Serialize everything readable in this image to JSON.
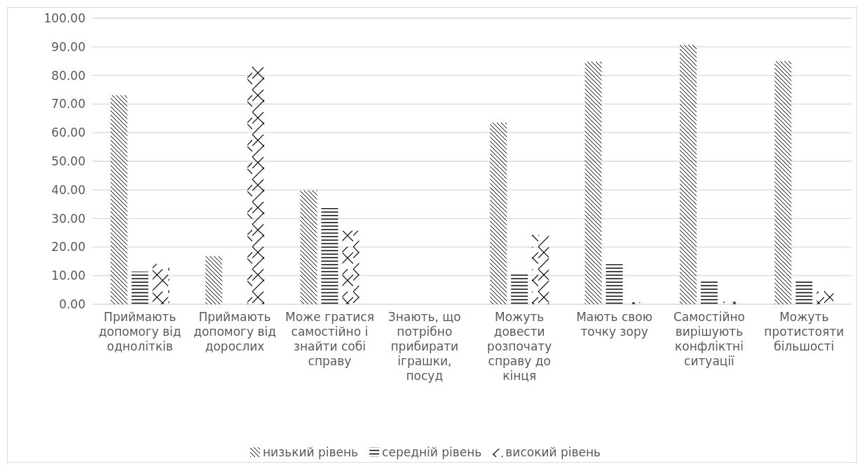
{
  "chart_data": {
    "type": "bar",
    "categories": [
      "Приймають допомогу від однолітків",
      "Приймають допомогу від дорослих",
      "Може гратися самостійно і знайти собі справу",
      "Знають, що потрібно прибирати іграшки, посуд",
      "Можуть довести розпочату справу до кінця",
      "Мають свою точку зору",
      "Самостійно вирішують конфліктні ситуації",
      "Можуть протистояти більшості"
    ],
    "series": [
      {
        "name": "низький рівень",
        "color": "#000000",
        "values": [
          73.1,
          16.8,
          39.8,
          0,
          63.5,
          84.8,
          90.7,
          85.0
        ]
      },
      {
        "name": "середній рівень",
        "color": "#000000",
        "values": [
          11.4,
          0,
          33.6,
          0,
          11.0,
          14.0,
          8.1,
          8.1
        ]
      },
      {
        "name": "високий рівень",
        "color": "#000000",
        "values": [
          14.1,
          83.1,
          25.7,
          0,
          24.2,
          0.7,
          0.9,
          4.6
        ]
      }
    ],
    "ylim": [
      0,
      100
    ],
    "yticks": [
      {
        "value": 0,
        "label": "0.00"
      },
      {
        "value": 10,
        "label": "10.00"
      },
      {
        "value": 20,
        "label": "20.00"
      },
      {
        "value": 30,
        "label": "30.00"
      },
      {
        "value": 40,
        "label": "40.00"
      },
      {
        "value": 50,
        "label": "50.00"
      },
      {
        "value": 60,
        "label": "60.00"
      },
      {
        "value": 70,
        "label": "70.00"
      },
      {
        "value": 80,
        "label": "80.00"
      },
      {
        "value": 90,
        "label": "90.00"
      },
      {
        "value": 100,
        "label": "100.00"
      }
    ],
    "grid": "y",
    "legend": "bottom"
  }
}
